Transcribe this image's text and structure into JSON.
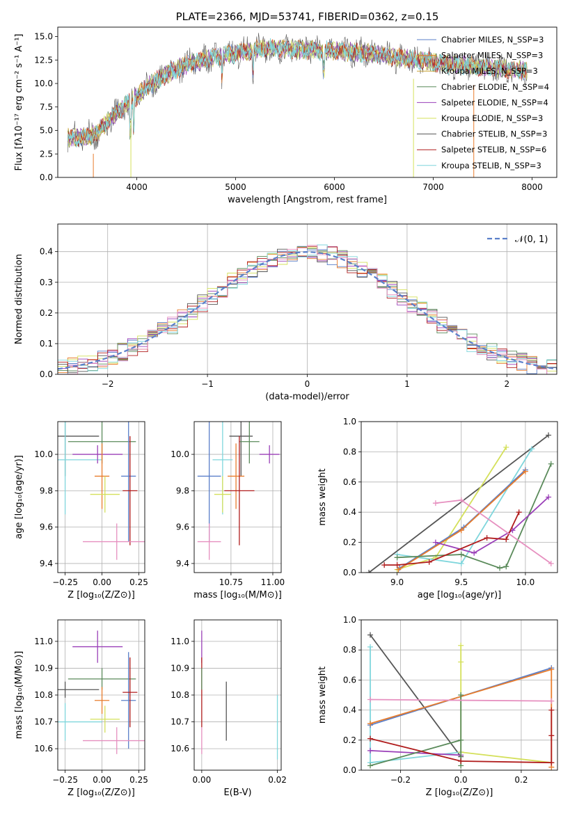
{
  "chart_data": [
    {
      "type": "line",
      "id": "spectrum",
      "title": "PLATE=2366, MJD=53741, FIBERID=0362, z=0.15",
      "xlabel": "wavelength [Angstrom, rest frame]",
      "ylabel": "Flux [fλ10⁻¹⁷ erg cm⁻² s⁻¹ A⁻¹]",
      "xlim": [
        3200,
        8250
      ],
      "ylim": [
        0,
        16
      ],
      "xticks": [
        "4000",
        "5000",
        "6000",
        "7000",
        "8000"
      ],
      "yticks": [
        "0.0",
        "2.5",
        "5.0",
        "7.5",
        "10.0",
        "12.5",
        "15.0"
      ],
      "grid": false,
      "legend_position": "top-right",
      "continuum": {
        "x": [
          3300,
          3500,
          3600,
          3700,
          3800,
          3900,
          4000,
          4100,
          4300,
          4500,
          4700,
          5000,
          5300,
          5600,
          6000,
          6400,
          6800,
          7200,
          7600,
          7900
        ],
        "y": [
          4.2,
          4.4,
          4.6,
          6.0,
          7.0,
          7.8,
          8.6,
          9.6,
          11.0,
          12.0,
          12.6,
          13.2,
          13.8,
          13.6,
          13.5,
          13.2,
          12.5,
          12.0,
          11.7,
          11.4
        ]
      },
      "series": [
        {
          "name": "Chabrier MILES, N_SSP=3",
          "color": "#5a7fc9"
        },
        {
          "name": "Salpeter MILES, N_SSP=3",
          "color": "#e87c2c"
        },
        {
          "name": "Kroupa MILES, N_SSP=3",
          "color": "#c9a43c"
        },
        {
          "name": "Chabrier ELODIE, N_SSP=4",
          "color": "#5a8a5a"
        },
        {
          "name": "Salpeter ELODIE, N_SSP=4",
          "color": "#9a3fb8"
        },
        {
          "name": "Kroupa ELODIE, N_SSP=3",
          "color": "#d4e05a"
        },
        {
          "name": "Chabrier STELIB, N_SSP=3",
          "color": "#555555"
        },
        {
          "name": "Salpeter STELIB, N_SSP=6",
          "color": "#b01c1c"
        },
        {
          "name": "Kroupa STELIB, N_SSP=3",
          "color": "#7fd6dc"
        }
      ]
    },
    {
      "type": "histogram",
      "id": "residuals",
      "xlabel": "(data-model)/error",
      "ylabel": "Normed distribution",
      "xlim": [
        -2.5,
        2.5
      ],
      "ylim": [
        0,
        0.49
      ],
      "xticks": [
        "−2",
        "−1",
        "0",
        "1",
        "2"
      ],
      "yticks": [
        "0.0",
        "0.1",
        "0.2",
        "0.3",
        "0.4"
      ],
      "grid": true,
      "legend_position": "top-right",
      "legend": "𝒩(0, 1)",
      "gaussian": {
        "mean": 0,
        "sigma": 1,
        "color": "#5a7fc9"
      },
      "bin_width": 0.1,
      "colors": [
        "#5a7fc9",
        "#e87c2c",
        "#5a8a5a",
        "#9a3fb8",
        "#d4e05a",
        "#555555",
        "#b01c1c",
        "#7fd6dc",
        "#e68fbf"
      ]
    },
    {
      "type": "scatter",
      "id": "age-vs-z",
      "xlabel": "Z [log₁₀(Z/Z⊙)]",
      "ylabel": "age  [log₁₀(age/yr)]",
      "xlim": [
        -0.3,
        0.29
      ],
      "ylim": [
        9.35,
        10.18
      ],
      "xticks": [
        "−0.25",
        "0.00",
        "0.25"
      ],
      "yticks": [
        "9.4",
        "9.6",
        "9.8",
        "10.0"
      ],
      "grid": true,
      "points": [
        {
          "x": -0.25,
          "y": 10.1,
          "xerr": 0.23,
          "yerr": 0.22,
          "color": "#555555"
        },
        {
          "x": 0.0,
          "y": 10.07,
          "xerr": 0.23,
          "yerr": 0.12,
          "color": "#5a8a5a"
        },
        {
          "x": -0.25,
          "y": 9.97,
          "xerr": 0.25,
          "yerr": 0.3,
          "color": "#7fd6dc"
        },
        {
          "x": -0.03,
          "y": 10.0,
          "xerr": 0.17,
          "yerr": 0.05,
          "color": "#9a3fb8"
        },
        {
          "x": 0.0,
          "y": 9.88,
          "xerr": 0.05,
          "yerr": 0.18,
          "color": "#e87c2c"
        },
        {
          "x": 0.18,
          "y": 9.88,
          "xerr": 0.05,
          "yerr": 0.36,
          "color": "#5a7fc9"
        },
        {
          "x": 0.02,
          "y": 9.78,
          "xerr": 0.1,
          "yerr": 0.1,
          "color": "#d4e05a"
        },
        {
          "x": 0.19,
          "y": 9.8,
          "xerr": 0.05,
          "yerr": 0.3,
          "color": "#b01c1c"
        },
        {
          "x": 0.1,
          "y": 9.52,
          "xerr": 0.23,
          "yerr": 0.1,
          "color": "#e68fbf"
        }
      ]
    },
    {
      "type": "scatter",
      "id": "age-vs-mass",
      "xlabel": "mass [log₁₀(M/M⊙)]",
      "ylabel": "",
      "xlim": [
        10.53,
        11.05
      ],
      "ylim": [
        9.35,
        10.18
      ],
      "xticks": [
        "10.75",
        "11.00"
      ],
      "yticks": [
        "9.4",
        "9.6",
        "9.8",
        "10.0"
      ],
      "grid": true,
      "points": [
        {
          "x": 10.81,
          "y": 10.1,
          "xerr": 0.07,
          "yerr": 0.22,
          "color": "#555555"
        },
        {
          "x": 10.86,
          "y": 10.07,
          "xerr": 0.06,
          "yerr": 0.12,
          "color": "#5a8a5a"
        },
        {
          "x": 10.7,
          "y": 9.97,
          "xerr": 0.06,
          "yerr": 0.3,
          "color": "#7fd6dc"
        },
        {
          "x": 10.98,
          "y": 10.0,
          "xerr": 0.06,
          "yerr": 0.05,
          "color": "#9a3fb8"
        },
        {
          "x": 10.78,
          "y": 9.88,
          "xerr": 0.05,
          "yerr": 0.18,
          "color": "#e87c2c"
        },
        {
          "x": 10.62,
          "y": 9.88,
          "xerr": 0.07,
          "yerr": 0.36,
          "color": "#5a7fc9"
        },
        {
          "x": 10.7,
          "y": 9.78,
          "xerr": 0.05,
          "yerr": 0.1,
          "color": "#d4e05a"
        },
        {
          "x": 10.8,
          "y": 9.8,
          "xerr": 0.09,
          "yerr": 0.3,
          "color": "#b01c1c"
        },
        {
          "x": 10.62,
          "y": 9.52,
          "xerr": 0.07,
          "yerr": 0.1,
          "color": "#e68fbf"
        }
      ]
    },
    {
      "type": "line",
      "id": "weight-vs-age",
      "xlabel": "age  [log₁₀(age/yr)]",
      "ylabel": "mass weight",
      "xlim": [
        8.72,
        10.25
      ],
      "ylim": [
        0,
        1
      ],
      "xticks": [
        "9.0",
        "9.5",
        "10.0"
      ],
      "yticks": [
        "0.0",
        "0.2",
        "0.4",
        "0.6",
        "0.8",
        "1.0"
      ],
      "grid": true,
      "series": [
        {
          "color": "#555555",
          "x": [
            8.78,
            10.18
          ],
          "y": [
            0.0,
            0.91
          ]
        },
        {
          "color": "#d4e05a",
          "x": [
            9.0,
            9.3,
            9.85
          ],
          "y": [
            0.02,
            0.1,
            0.83
          ]
        },
        {
          "color": "#7fd6dc",
          "x": [
            9.0,
            9.5,
            10.05
          ],
          "y": [
            0.12,
            0.06,
            0.82
          ]
        },
        {
          "color": "#5a7fc9",
          "x": [
            9.02,
            9.52,
            10.0
          ],
          "y": [
            0.03,
            0.3,
            0.68
          ]
        },
        {
          "color": "#e87c2c",
          "x": [
            9.01,
            9.5,
            10.0
          ],
          "y": [
            0.02,
            0.28,
            0.67
          ]
        },
        {
          "color": "#5a8a5a",
          "x": [
            9.0,
            9.5,
            9.8,
            9.85,
            10.2
          ],
          "y": [
            0.1,
            0.12,
            0.03,
            0.04,
            0.72
          ]
        },
        {
          "color": "#9a3fb8",
          "x": [
            9.3,
            9.6,
            9.9,
            10.18
          ],
          "y": [
            0.2,
            0.13,
            0.28,
            0.5
          ]
        },
        {
          "color": "#b01c1c",
          "x": [
            8.9,
            9.0,
            9.25,
            9.7,
            9.85,
            9.95
          ],
          "y": [
            0.05,
            0.05,
            0.07,
            0.23,
            0.22,
            0.4
          ]
        },
        {
          "color": "#e68fbf",
          "x": [
            9.3,
            9.5,
            10.2
          ],
          "y": [
            0.46,
            0.48,
            0.06
          ]
        }
      ]
    },
    {
      "type": "scatter",
      "id": "mass-vs-z",
      "xlabel": "Z [log₁₀(Z/Z⊙)]",
      "ylabel": "mass [log₁₀(M/M⊙)]",
      "xlim": [
        -0.3,
        0.29
      ],
      "ylim": [
        10.52,
        11.08
      ],
      "xticks": [
        "−0.25",
        "0.00",
        "0.25"
      ],
      "yticks": [
        "10.6",
        "10.7",
        "10.8",
        "10.9",
        "11.0"
      ],
      "grid": true,
      "points": [
        {
          "x": -0.25,
          "y": 10.82,
          "xerr": 0.23,
          "yerr": 0.03,
          "color": "#555555"
        },
        {
          "x": 0.0,
          "y": 10.86,
          "xerr": 0.23,
          "yerr": 0.04,
          "color": "#5a8a5a"
        },
        {
          "x": -0.25,
          "y": 10.7,
          "xerr": 0.25,
          "yerr": 0.07,
          "color": "#7fd6dc"
        },
        {
          "x": -0.03,
          "y": 10.98,
          "xerr": 0.17,
          "yerr": 0.06,
          "color": "#9a3fb8"
        },
        {
          "x": 0.0,
          "y": 10.78,
          "xerr": 0.05,
          "yerr": 0.05,
          "color": "#e87c2c"
        },
        {
          "x": 0.18,
          "y": 10.78,
          "xerr": 0.05,
          "yerr": 0.18,
          "color": "#5a7fc9"
        },
        {
          "x": 0.02,
          "y": 10.71,
          "xerr": 0.1,
          "yerr": 0.05,
          "color": "#d4e05a"
        },
        {
          "x": 0.19,
          "y": 10.81,
          "xerr": 0.05,
          "yerr": 0.13,
          "color": "#b01c1c"
        },
        {
          "x": 0.1,
          "y": 10.63,
          "xerr": 0.23,
          "yerr": 0.05,
          "color": "#e68fbf"
        }
      ]
    },
    {
      "type": "scatter",
      "id": "mass-vs-ebv",
      "xlabel": "E(B-V)",
      "ylabel": "",
      "xlim": [
        -0.002,
        0.021
      ],
      "ylim": [
        10.52,
        11.08
      ],
      "xticks": [
        "0.00",
        "0.02"
      ],
      "yticks": [
        "10.6",
        "10.7",
        "10.8",
        "10.9",
        "11.0"
      ],
      "grid": true,
      "points": [
        {
          "x": 0.0,
          "y": 10.98,
          "xerr": 0,
          "yerr": 0.06,
          "color": "#9a3fb8"
        },
        {
          "x": 0.0,
          "y": 10.81,
          "xerr": 0,
          "yerr": 0.13,
          "color": "#b01c1c"
        },
        {
          "x": 0.0,
          "y": 10.86,
          "xerr": 0,
          "yerr": 0.04,
          "color": "#5a8a5a"
        },
        {
          "x": 0.0,
          "y": 10.63,
          "xerr": 0,
          "yerr": 0.05,
          "color": "#e68fbf"
        },
        {
          "x": 0.0065,
          "y": 10.74,
          "xerr": 0,
          "yerr": 0.11,
          "color": "#555555"
        },
        {
          "x": 0.02,
          "y": 10.68,
          "xerr": 0,
          "yerr": 0.12,
          "color": "#7fd6dc"
        }
      ]
    },
    {
      "type": "line",
      "id": "weight-vs-z",
      "xlabel": "Z [log₁₀(Z/Z⊙)]",
      "ylabel": "mass weight",
      "xlim": [
        -0.33,
        0.32
      ],
      "ylim": [
        0,
        1
      ],
      "xticks": [
        "−0.2",
        "0.0",
        "0.2"
      ],
      "yticks": [
        "0.0",
        "0.2",
        "0.4",
        "0.6",
        "0.8",
        "1.0"
      ],
      "grid": true,
      "series": [
        {
          "color": "#555555",
          "x": [
            -0.3,
            0.0
          ],
          "y": [
            0.9,
            0.09
          ]
        },
        {
          "color": "#7fd6dc",
          "x": [
            -0.3,
            -0.3,
            0.0
          ],
          "y": [
            0.82,
            0.05,
            0.12
          ]
        },
        {
          "color": "#d4e05a",
          "x": [
            0.0,
            0.0,
            0.0,
            0.3
          ],
          "y": [
            0.83,
            0.72,
            0.12,
            0.05
          ]
        },
        {
          "color": "#5a7fc9",
          "x": [
            -0.3,
            0.3
          ],
          "y": [
            0.3,
            0.68
          ]
        },
        {
          "color": "#e87c2c",
          "x": [
            -0.3,
            0.3,
            0.3
          ],
          "y": [
            0.31,
            0.67,
            0.02
          ]
        },
        {
          "color": "#9a3fb8",
          "x": [
            -0.3,
            0.0
          ],
          "y": [
            0.13,
            0.1
          ]
        },
        {
          "color": "#5a8a5a",
          "x": [
            -0.3,
            0.0,
            0.0,
            0.0
          ],
          "y": [
            0.03,
            0.2,
            0.5,
            0.03
          ]
        },
        {
          "color": "#b01c1c",
          "x": [
            -0.3,
            0.0,
            0.3,
            0.3,
            0.3,
            0.3
          ],
          "y": [
            0.21,
            0.06,
            0.05,
            0.23,
            0.4,
            0.05
          ]
        },
        {
          "color": "#e68fbf",
          "x": [
            -0.3,
            0.3
          ],
          "y": [
            0.47,
            0.46
          ]
        }
      ]
    }
  ]
}
